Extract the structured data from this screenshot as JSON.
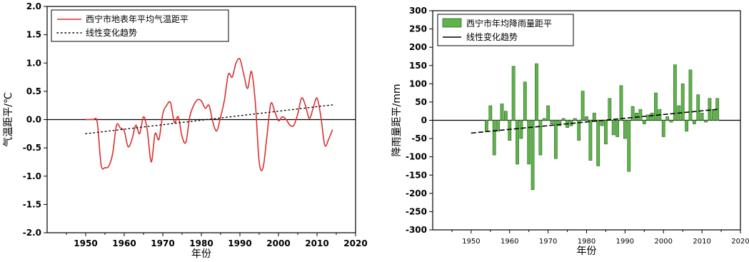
{
  "chart_data": [
    {
      "type": "line",
      "xlabel": "年份",
      "ylabel": "气温距平/℃",
      "xlim": [
        1940,
        2020
      ],
      "ylim": [
        -2.0,
        2.0
      ],
      "xticks": [
        1950,
        1960,
        1970,
        1980,
        1990,
        2000,
        2010,
        2020
      ],
      "yticks": [
        -2.0,
        -1.5,
        -1.0,
        -0.5,
        0.0,
        0.5,
        1.0,
        1.5,
        2.0
      ],
      "legend_position": "top-left",
      "grid": false,
      "series": [
        {
          "name": "西宁市地表年平均气温距平",
          "style": "solid",
          "color": "#d93030",
          "x": [
            1950,
            1951,
            1952,
            1953,
            1954,
            1955,
            1956,
            1957,
            1958,
            1959,
            1960,
            1961,
            1962,
            1963,
            1964,
            1965,
            1966,
            1967,
            1968,
            1969,
            1970,
            1971,
            1972,
            1973,
            1974,
            1975,
            1976,
            1977,
            1978,
            1979,
            1980,
            1981,
            1982,
            1983,
            1984,
            1985,
            1986,
            1987,
            1988,
            1989,
            1990,
            1991,
            1992,
            1993,
            1994,
            1995,
            1996,
            1997,
            1998,
            1999,
            2000,
            2001,
            2002,
            2003,
            2004,
            2005,
            2006,
            2007,
            2008,
            2009,
            2010,
            2011,
            2012,
            2013,
            2014
          ],
          "y": [
            0.0,
            0.0,
            0.0,
            -0.05,
            -0.8,
            -0.85,
            -0.82,
            -0.6,
            -0.1,
            -0.15,
            -0.2,
            -0.48,
            -0.35,
            -0.1,
            -0.25,
            0.05,
            -0.2,
            -0.75,
            -0.25,
            -0.35,
            0.1,
            0.25,
            0.3,
            -0.05,
            0.05,
            -0.3,
            -0.4,
            0.05,
            0.25,
            0.35,
            0.33,
            0.2,
            0.25,
            -0.05,
            -0.2,
            0.05,
            0.35,
            0.8,
            0.75,
            1.0,
            1.07,
            0.8,
            0.55,
            0.85,
            0.3,
            -0.75,
            -0.85,
            -0.3,
            0.28,
            0.15,
            -0.02,
            0.05,
            0.0,
            -0.1,
            -0.1,
            0.1,
            0.38,
            0.25,
            0.02,
            0.2,
            0.38,
            0.05,
            -0.45,
            -0.35,
            -0.18
          ]
        },
        {
          "name": "线性变化趋势",
          "style": "dotted",
          "color": "#000000",
          "x": [
            1950,
            2014
          ],
          "y": [
            -0.25,
            0.26
          ]
        }
      ]
    },
    {
      "type": "bar",
      "xlabel": "年份",
      "ylabel": "降雨量距平/mm",
      "xlim": [
        1940,
        2020
      ],
      "ylim": [
        -300,
        300
      ],
      "xticks": [
        1950,
        1960,
        1970,
        1980,
        1990,
        2000,
        2010,
        2020
      ],
      "yticks": [
        -300,
        -250,
        -200,
        -150,
        -100,
        -50,
        0,
        50,
        100,
        150,
        200,
        250,
        300
      ],
      "legend_position": "top-left",
      "grid": false,
      "bar_color": "#5fb34a",
      "series": [
        {
          "name": "西宁市年均降雨量距平",
          "x": [
            1954,
            1955,
            1956,
            1957,
            1958,
            1959,
            1960,
            1961,
            1962,
            1963,
            1964,
            1965,
            1966,
            1967,
            1968,
            1969,
            1970,
            1971,
            1972,
            1973,
            1974,
            1975,
            1976,
            1977,
            1978,
            1979,
            1980,
            1981,
            1982,
            1983,
            1984,
            1985,
            1986,
            1987,
            1988,
            1989,
            1990,
            1991,
            1992,
            1993,
            1994,
            1995,
            1996,
            1997,
            1998,
            1999,
            2000,
            2001,
            2002,
            2003,
            2004,
            2005,
            2006,
            2007,
            2008,
            2009,
            2010,
            2011,
            2012,
            2013,
            2014
          ],
          "values": [
            -30,
            40,
            -95,
            -30,
            45,
            25,
            -55,
            148,
            -120,
            -50,
            105,
            -120,
            -190,
            155,
            -95,
            5,
            40,
            -10,
            -105,
            -15,
            5,
            -20,
            -15,
            5,
            -55,
            80,
            10,
            -110,
            20,
            -125,
            -15,
            -65,
            60,
            -40,
            -45,
            95,
            -50,
            -140,
            38,
            20,
            30,
            -10,
            15,
            20,
            75,
            30,
            -45,
            10,
            -5,
            152,
            40,
            100,
            -30,
            138,
            -10,
            70,
            20,
            -5,
            60,
            30,
            60
          ]
        },
        {
          "name": "线性变化趋势",
          "style": "solid",
          "color": "#000000",
          "x": [
            1950,
            2014
          ],
          "values": [
            -35,
            30
          ]
        }
      ]
    }
  ]
}
